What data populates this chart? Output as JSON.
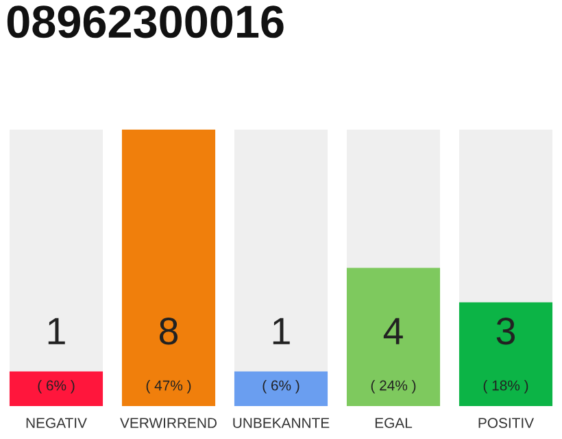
{
  "chart_data": {
    "type": "bar",
    "title": "08962300016",
    "categories": [
      "NEGATIV",
      "VERWIRREND",
      "UNBEKANNTE",
      "EGAL",
      "POSITIV"
    ],
    "values": [
      1,
      8,
      1,
      4,
      3
    ],
    "colors": [
      "#ff163c",
      "#f07f0c",
      "#6a9ef0",
      "#7ec95e",
      "#0cb446"
    ],
    "data_labels": true,
    "annotations": [
      "( 6% )",
      "( 47% )",
      "( 6% )",
      "( 24% )",
      "( 18% )"
    ],
    "grid": false,
    "legend": false
  }
}
